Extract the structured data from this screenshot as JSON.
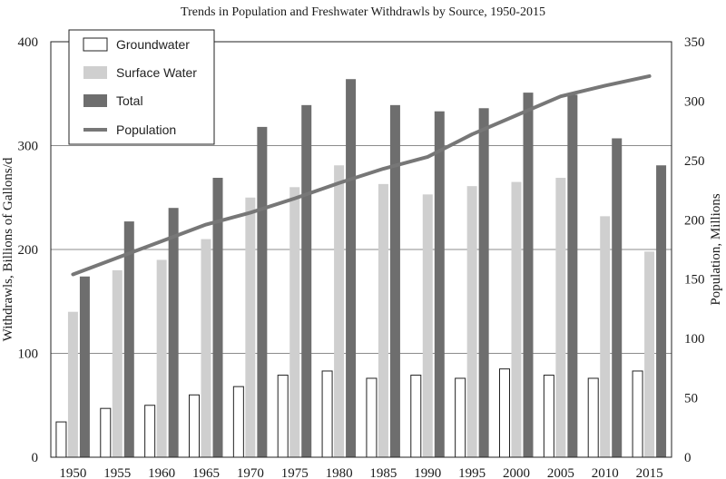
{
  "chart_data": {
    "type": "bar",
    "title": "Trends in Population and Freshwater Withdrawls by Source, 1950-2015",
    "ylabel": "Withdrawls, Billions of Gallons/d",
    "y2label": "Population, Millions",
    "xlabel": "",
    "categories": [
      "1950",
      "1955",
      "1960",
      "1965",
      "1970",
      "1975",
      "1980",
      "1985",
      "1990",
      "1995",
      "2000",
      "2005",
      "2010",
      "2015"
    ],
    "ylim": [
      0,
      400
    ],
    "y2lim": [
      0,
      350
    ],
    "yticks": [
      0,
      100,
      200,
      300,
      400
    ],
    "y2ticks": [
      0,
      50,
      100,
      150,
      200,
      250,
      300,
      350
    ],
    "grid": true,
    "legend_position": "top-left",
    "series": [
      {
        "name": "Groundwater",
        "type": "bar",
        "axis": "left",
        "color": "#ffffff",
        "stroke": "#222222",
        "values": [
          34,
          47,
          50,
          60,
          68,
          79,
          83,
          76,
          79,
          76,
          85,
          79,
          76,
          83
        ]
      },
      {
        "name": "Surface Water",
        "type": "bar",
        "axis": "left",
        "color": "#cfcfcf",
        "values": [
          140,
          180,
          190,
          210,
          250,
          260,
          281,
          263,
          253,
          261,
          265,
          269,
          232,
          198
        ]
      },
      {
        "name": "Total",
        "type": "bar",
        "axis": "left",
        "color": "#6e6e6e",
        "values": [
          174,
          227,
          240,
          269,
          318,
          339,
          364,
          339,
          333,
          336,
          351,
          349,
          307,
          281
        ]
      },
      {
        "name": "Population",
        "type": "line",
        "axis": "right",
        "color": "#777777",
        "values": [
          154,
          168,
          182,
          196,
          206,
          218,
          231,
          243,
          253,
          272,
          288,
          304,
          313,
          321
        ]
      }
    ]
  }
}
